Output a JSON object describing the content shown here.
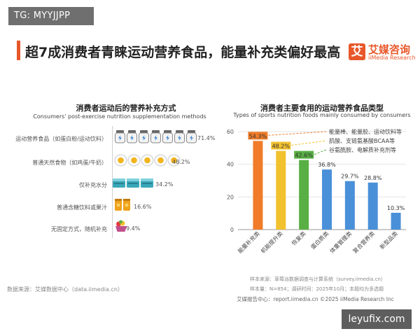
{
  "tag": "TG: MYYJJPP",
  "headline": "超7成消费者青睐运动营养食品，能量补充类偏好最高",
  "logo": {
    "mark": "艾",
    "name_cn": "艾媒咨询",
    "name_en": "iiMedia Research"
  },
  "left_chart": {
    "title": "消费者运动后的营养补充方式",
    "subtitle": "Consumers' post-exercise nutrition supplementation methods",
    "rows": [
      {
        "label": "运动营养食品（如蛋白粉/运动饮料）",
        "value": "71.4%",
        "icon": "protein-powder-jar-icon",
        "count": 7
      },
      {
        "label": "普通天然食物（如鸡蛋/牛奶）",
        "value": "48.2%",
        "icon": "egg-icon",
        "count": 5
      },
      {
        "label": "仅补充水分",
        "value": "34.2%",
        "icon": "water-glass-icon",
        "count": 3
      },
      {
        "label": "普通含糖饮料或果汁",
        "value": "16.6%",
        "icon": "juice-can-icon",
        "count": 2
      },
      {
        "label": "无固定方式，随机补充",
        "value": "9.4%",
        "icon": "fruit-basket-icon",
        "count": 1
      }
    ]
  },
  "chart_data": {
    "type": "bar",
    "title": "消费者主要食用的运动营养食品类型",
    "subtitle": "Types of sports nutrition foods mainly consumed by consumers",
    "categories": [
      "能量补充类",
      "机能提升类",
      "恢复类",
      "蛋白质类",
      "体重管理类",
      "复合营养类",
      "新型品类"
    ],
    "values": [
      54.3,
      48.2,
      42.6,
      36.8,
      29.7,
      28.8,
      10.3
    ],
    "labels": [
      "54.3%",
      "48.2%",
      "42.6%",
      "36.8%",
      "29.7%",
      "28.8%",
      "10.3%"
    ],
    "colors": [
      "#f07c2a",
      "#f2c12e",
      "#58b044",
      "#4a90d9",
      "#4a90d9",
      "#4a90d9",
      "#4a90d9"
    ],
    "ylim": [
      0,
      60
    ],
    "yticks": [
      0,
      20,
      40,
      60
    ],
    "annotations": [
      {
        "text": "能量棒、能量胶、运动饮料等",
        "bar": 0
      },
      {
        "text": "肌酸、支链氨基酸BCAA等",
        "bar": 1
      },
      {
        "text": "谷氨酰胺、电解质补充剂等",
        "bar": 2
      }
    ]
  },
  "footer": {
    "source_left": "数据来源：艾媒数据中心（data.iimedia.cn）",
    "sample_source": "样本来源：草莓派数据调查与计算系统（survey.iimedia.cn）",
    "sample_size": "样本量：N=854；调研时间：2025年10月；本题均为多选题",
    "report_line": "艾媒报告中心：report.iimedia.cn    ©2025  iiMedia Research Inc"
  },
  "watermark": "leyufix.com"
}
